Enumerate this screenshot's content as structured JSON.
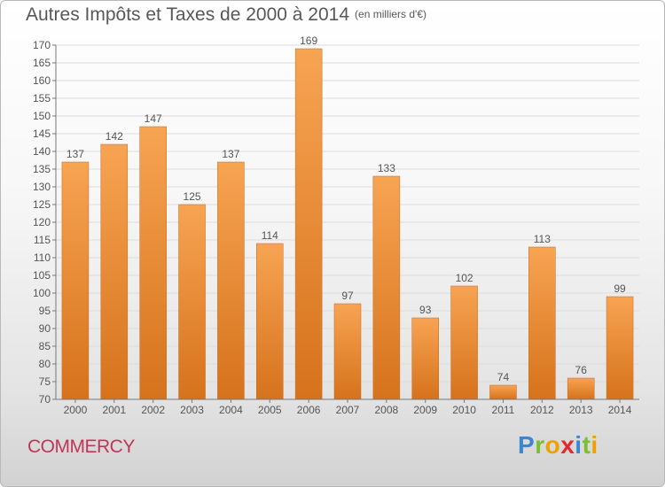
{
  "header": {
    "title": "Autres Impôts et Taxes de 2000 à 2014",
    "unit": "(en milliers d'€)"
  },
  "footer": {
    "city": "COMMERCY",
    "logo_letters": [
      "P",
      "r",
      "o",
      "x",
      "i",
      "t",
      "i"
    ],
    "logo_colors": [
      "#3a86d1",
      "#7bbf2a",
      "#f0a000",
      "#e8262a",
      "#3a86d1",
      "#7bbf2a",
      "#f0a000"
    ]
  },
  "colors": {
    "bar_top": "#f7a452",
    "bar_bottom": "#d6721c",
    "bar_edge": "#c8691a",
    "axis_text": "#555555",
    "grid": "#dcdcdc",
    "city": "#c0365a"
  },
  "chart_data": {
    "type": "bar",
    "title": "Autres Impôts et Taxes de 2000 à 2014",
    "subtitle": "(en milliers d'€)",
    "categories": [
      "2000",
      "2001",
      "2002",
      "2003",
      "2004",
      "2005",
      "2006",
      "2007",
      "2008",
      "2009",
      "2010",
      "2011",
      "2012",
      "2013",
      "2014"
    ],
    "values": [
      137,
      142,
      147,
      125,
      137,
      114,
      169,
      97,
      133,
      93,
      102,
      74,
      113,
      76,
      99
    ],
    "ylim": [
      70,
      170
    ],
    "ytick_step": 5,
    "grid": true,
    "legend": "none"
  }
}
